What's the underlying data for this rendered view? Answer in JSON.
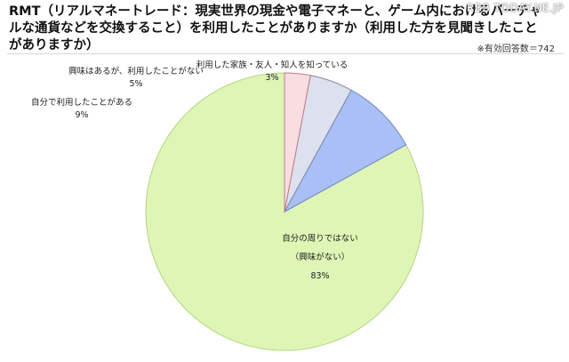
{
  "header": {
    "title": "RMT（リアルマネートレード：現実世界の現金や電子マネーと、ゲーム内におけるバーチャルな通貨などを交換すること）を利用したことがありますか（利用した方を見聞きしたことがありますか）",
    "note": "※有効回答数＝742",
    "watermark": "RBB TODAY.NE.JP"
  },
  "chart_data": {
    "type": "pie",
    "title": "RMT（リアルマネートレード：現実世界の現金や電子マネーと、ゲーム内におけるバーチャルな通貨などを交換すること）を利用したことがありますか（利用した方を見聞きしたことがありますか）",
    "slices": [
      {
        "label": "自分の周りではない（興味がない）",
        "label_lines": [
          "自分の周りではない",
          "（興味がない）"
        ],
        "value": 83,
        "value_label": "83%",
        "color": "#dff5b5",
        "stroke": "#b3d67f"
      },
      {
        "label": "自分で利用したことがある",
        "label_lines": [
          "自分で利用したことがある"
        ],
        "value": 9,
        "value_label": "9%",
        "color": "#a9bff5",
        "stroke": "#6f87c9"
      },
      {
        "label": "興味はあるが、利用したことがない",
        "label_lines": [
          "興味はあるが、利用したことがない"
        ],
        "value": 5,
        "value_label": "5%",
        "color": "#dde1ee",
        "stroke": "#7f88a8"
      },
      {
        "label": "利用した家族・友人・知人を知っている",
        "label_lines": [
          "利用した家族・友人・知人を知っている"
        ],
        "value": 3,
        "value_label": "3%",
        "color": "#f8dde1",
        "stroke": "#c27c86"
      }
    ],
    "start_angle_deg": 0,
    "direction": "counterclockwise-from-top",
    "legend": "none",
    "n_respondents": 742
  }
}
